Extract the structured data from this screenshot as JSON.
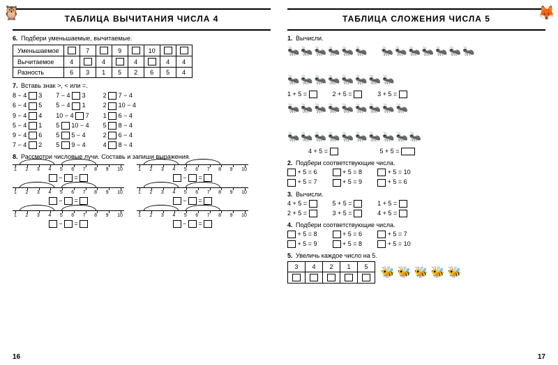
{
  "left": {
    "title": "ТАБЛИЦА ВЫЧИТАНИЯ ЧИСЛА 4",
    "page_num": "16",
    "t6": {
      "num": "6.",
      "text": "Подбери уменьшаемые, вычитаемые.",
      "rows": [
        {
          "label": "Уменьшаемое",
          "cells": [
            "",
            "7",
            "",
            "9",
            "",
            "10",
            "",
            ""
          ]
        },
        {
          "label": "Вычитаемое",
          "cells": [
            "4",
            "",
            "4",
            "",
            "4",
            "",
            "4",
            "4"
          ]
        },
        {
          "label": "Разность",
          "cells": [
            "6",
            "3",
            "1",
            "5",
            "2",
            "6",
            "5",
            "4"
          ]
        }
      ]
    },
    "t7": {
      "num": "7.",
      "text": "Вставь знак >, < или =.",
      "c1": [
        "8 − 4 □ 3",
        "6 − 4 □ 5",
        "9 − 4 □ 4",
        "5 − 4 □ 1",
        "9 − 4 □ 6",
        "7 − 4 □ 2"
      ],
      "c2": [
        "7 − 4 □ 3",
        "5 − 4 □ 1",
        "10 − 4 □ 7",
        "5 □ 10 − 4",
        "5 □ 5 − 4",
        "5 □ 9 − 4"
      ],
      "c3": [
        "2 □ 7 − 4",
        "2 □ 10 − 4",
        "1 □ 6 − 4",
        "5 □ 8 − 4",
        "2 □ 6 − 4",
        "4 □ 8 − 4"
      ]
    },
    "t8": {
      "num": "8.",
      "text": "Рассмотри числовые лучи. Составь и запиши выражения."
    }
  },
  "right": {
    "title": "ТАБЛИЦА СЛОЖЕНИЯ ЧИСЛА 5",
    "page_num": "17",
    "t1": {
      "num": "1.",
      "text": "Вычисли.",
      "r1": [
        "1 + 5 =",
        "2 + 5 =",
        "3 + 5 ="
      ],
      "r2": [
        "4 + 5 =",
        "5 + 5 ="
      ]
    },
    "t2": {
      "num": "2.",
      "text": "Подбери соответствующие числа.",
      "rows": [
        [
          "□ + 5 = 6",
          "□ + 5 = 8",
          "□ + 5 = 10"
        ],
        [
          "□ + 5 = 7",
          "□ + 5 = 9",
          "□ + 5 = 6"
        ]
      ]
    },
    "t3": {
      "num": "3.",
      "text": "Вычисли.",
      "rows": [
        [
          "4 + 5 = □",
          "5 + 5 = □",
          "1 + 5 = □"
        ],
        [
          "2 + 5 = □",
          "3 + 5 = □",
          "4 + 5 = □"
        ]
      ]
    },
    "t4": {
      "num": "4.",
      "text": "Подбери соответствующие числа.",
      "rows": [
        [
          "□ + 5 = 8",
          "□ + 5 = 6",
          "□ + 5 = 7"
        ],
        [
          "□ + 5 = 9",
          "□ + 5 = 8",
          "□ + 5 = 10"
        ]
      ]
    },
    "t5": {
      "num": "5.",
      "text": "Увеличь каждое число на 5.",
      "header": [
        "3",
        "4",
        "2",
        "1",
        "5"
      ]
    }
  }
}
